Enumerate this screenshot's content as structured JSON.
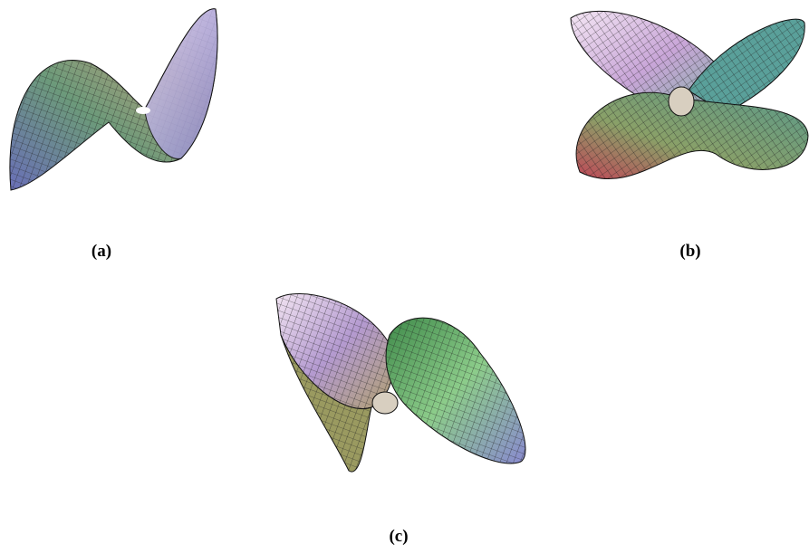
{
  "figures": [
    {
      "label": "(a)"
    },
    {
      "label": "(b)"
    },
    {
      "label": "(c)"
    }
  ]
}
